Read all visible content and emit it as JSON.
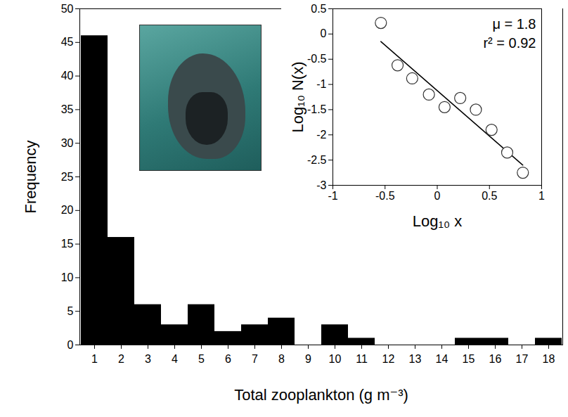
{
  "chart_data": [
    {
      "type": "bar",
      "xlabel": "Total zooplankton (g m⁻³)",
      "ylabel": "Frequency",
      "categories": [
        "1",
        "2",
        "3",
        "4",
        "5",
        "6",
        "7",
        "8",
        "9",
        "10",
        "11",
        "12",
        "13",
        "14",
        "15",
        "16",
        "17",
        "18"
      ],
      "values": [
        46,
        16,
        6,
        3,
        6,
        2,
        3,
        4,
        0,
        3,
        1,
        0,
        0,
        0,
        1,
        1,
        0,
        1
      ],
      "color": "#000000",
      "ylim": [
        0,
        50
      ],
      "yticks": [
        0,
        5,
        10,
        15,
        20,
        25,
        30,
        35,
        40,
        45,
        50
      ],
      "grid": false
    },
    {
      "type": "scatter",
      "xlabel": "Log₁₀ x",
      "ylabel": "Log₁₀ N(x)",
      "x": [
        -0.54,
        -0.38,
        -0.24,
        -0.08,
        0.07,
        0.22,
        0.37,
        0.52,
        0.67,
        0.82
      ],
      "values": [
        0.22,
        -0.62,
        -0.88,
        -1.2,
        -1.45,
        -1.27,
        -1.5,
        -1.9,
        -2.35,
        -2.75
      ],
      "marker": "circle",
      "color": "#333333",
      "fit_line": {
        "x": [
          -0.54,
          0.82
        ],
        "values": [
          -0.15,
          -2.6
        ],
        "color": "#000000"
      },
      "annotations": [
        "μ = 1.8",
        "r² = 0.92"
      ],
      "xlim": [
        -1,
        1
      ],
      "xticks": [
        -1,
        -0.5,
        0,
        0.5,
        1
      ],
      "ylim": [
        -3,
        0.5
      ],
      "yticks": [
        -3,
        -2.5,
        -2,
        -1.5,
        -1,
        -0.5,
        0,
        0.5
      ],
      "grid": false
    }
  ]
}
